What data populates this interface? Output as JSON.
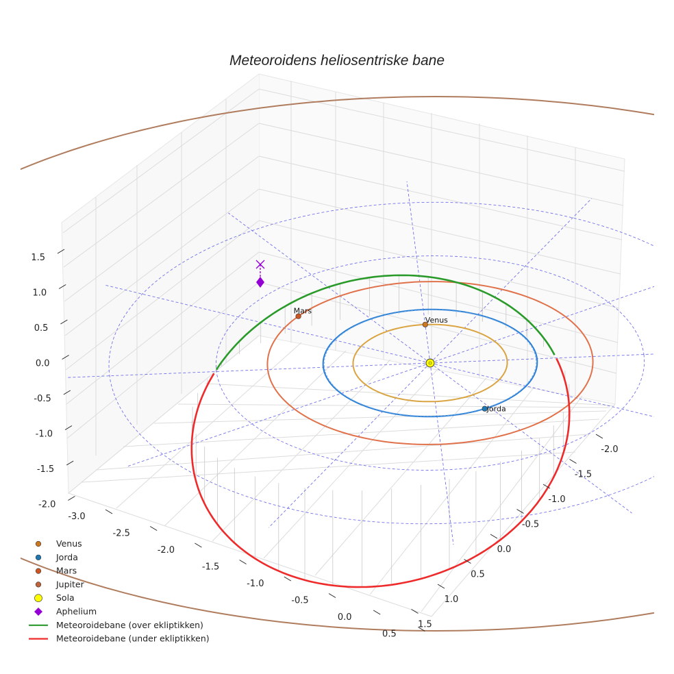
{
  "chart_data": {
    "type": "line",
    "projection": "3d",
    "title": "Meteoroidens heliosentriske bane",
    "axes": {
      "x": {
        "ticks": [
          "-3.0",
          "-2.5",
          "-2.0",
          "-1.5",
          "-1.0",
          "-0.5",
          "0.0",
          "0.5"
        ],
        "range": [
          -3.2,
          0.8
        ]
      },
      "y": {
        "ticks": [
          "-2.0",
          "-1.5",
          "-1.0",
          "-0.5",
          "0.0",
          "0.5",
          "1.0",
          "1.5"
        ],
        "range": [
          -2.2,
          1.6
        ]
      },
      "z": {
        "ticks": [
          "-2.0",
          "-1.5",
          "-1.0",
          "-0.5",
          "0.0",
          "0.5",
          "1.0",
          "1.5"
        ],
        "range": [
          -2.0,
          1.8
        ]
      },
      "grid": true
    },
    "planet_orbits": [
      {
        "name": "Venus",
        "radius_au": 0.72,
        "color": "#d9a441"
      },
      {
        "name": "Jorda",
        "radius_au": 1.0,
        "color": "#2a7fd4"
      },
      {
        "name": "Mars",
        "radius_au": 1.52,
        "color": "#e0714a"
      },
      {
        "name": "Jupiter",
        "radius_au": 5.2,
        "color": "#b07c5e"
      }
    ],
    "reference_circles_au": [
      1.0,
      2.0,
      3.0
    ],
    "series": [
      {
        "name": "Venus",
        "marker": "circle",
        "color": "#cc7722",
        "label": "Venus"
      },
      {
        "name": "Jorda",
        "marker": "circle",
        "color": "#1f77b4",
        "label": "Jorda"
      },
      {
        "name": "Mars",
        "marker": "circle",
        "color": "#cc5522",
        "label": "Mars"
      },
      {
        "name": "Jupiter",
        "marker": "circle",
        "color": "#c0623a",
        "label": ""
      },
      {
        "name": "Sola",
        "marker": "circle",
        "color": "#ffff00",
        "label": ""
      },
      {
        "name": "Aphelium",
        "marker": "diamond",
        "color": "#9400d3",
        "label": ""
      },
      {
        "name": "Meteoroidebane (over ekliptikken)",
        "marker": "line",
        "color": "#2a9a2a"
      },
      {
        "name": "Meteoroidebane (under ekliptikken)",
        "marker": "line",
        "color": "#ee2a2a"
      }
    ],
    "meteoroid_orbit": {
      "perihelion_au": 1.0,
      "aphelion_au": 2.9,
      "inclination_deg": 30
    }
  }
}
